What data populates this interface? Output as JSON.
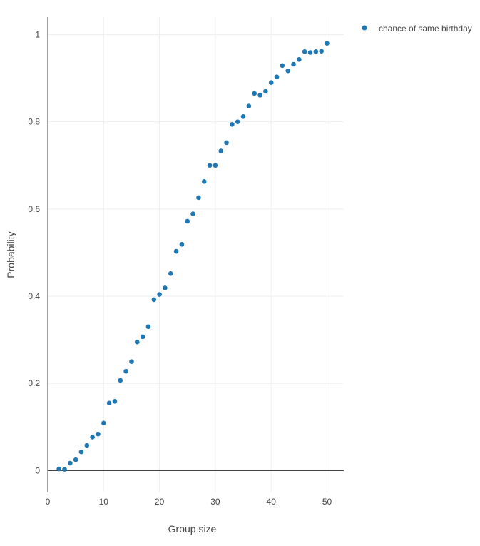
{
  "colors": {
    "series": "#1f77b4",
    "axis": "#444444",
    "grid": "#eeeeee"
  },
  "chart_data": {
    "type": "scatter",
    "title": "",
    "xlabel": "Group size",
    "ylabel": "Probability",
    "xlim": [
      0,
      53
    ],
    "ylim": [
      -0.05,
      1.04
    ],
    "x_ticks": [
      0,
      10,
      20,
      30,
      40,
      50
    ],
    "x_tick_labels": [
      "0",
      "10",
      "20",
      "30",
      "40",
      "50"
    ],
    "y_ticks": [
      0,
      0.2,
      0.4,
      0.6,
      0.8,
      1
    ],
    "y_tick_labels": [
      "0",
      "0.2",
      "0.4",
      "0.6",
      "0.8",
      "1"
    ],
    "grid": true,
    "legend": "top-right",
    "series": [
      {
        "name": "chance of same birthday",
        "x": [
          2,
          3,
          4,
          5,
          6,
          7,
          8,
          9,
          10,
          11,
          12,
          13,
          14,
          15,
          16,
          17,
          18,
          19,
          20,
          21,
          22,
          23,
          24,
          25,
          26,
          27,
          28,
          29,
          30,
          31,
          32,
          33,
          34,
          35,
          36,
          37,
          38,
          39,
          40,
          41,
          42,
          43,
          44,
          45,
          46,
          47,
          48,
          49,
          50
        ],
        "y": [
          0.004,
          0.003,
          0.017,
          0.025,
          0.043,
          0.058,
          0.077,
          0.084,
          0.109,
          0.155,
          0.159,
          0.207,
          0.228,
          0.25,
          0.295,
          0.307,
          0.33,
          0.392,
          0.404,
          0.419,
          0.452,
          0.503,
          0.519,
          0.572,
          0.589,
          0.626,
          0.663,
          0.7,
          0.7,
          0.733,
          0.752,
          0.794,
          0.8,
          0.812,
          0.836,
          0.865,
          0.861,
          0.87,
          0.89,
          0.903,
          0.929,
          0.917,
          0.932,
          0.943,
          0.961,
          0.959,
          0.961,
          0.962,
          0.98
        ]
      }
    ]
  }
}
